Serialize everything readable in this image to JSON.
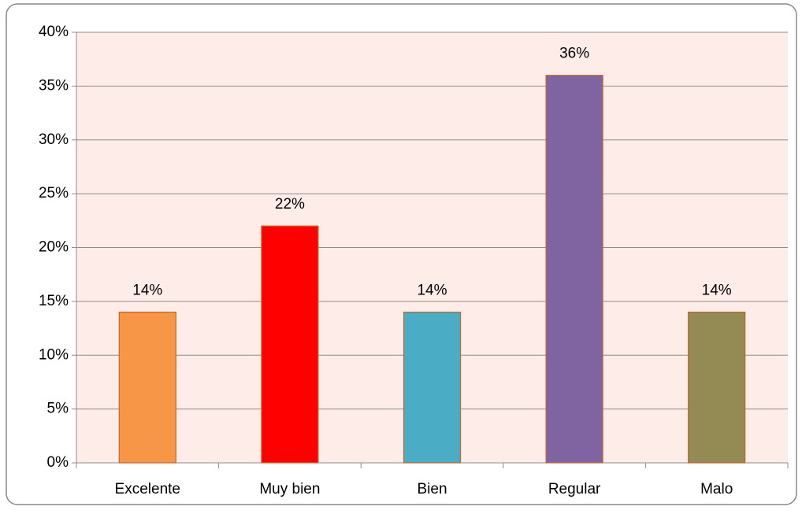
{
  "chart_data": {
    "type": "bar",
    "categories": [
      "Excelente",
      "Muy bien",
      "Bien",
      "Regular",
      "Malo"
    ],
    "values": [
      14,
      22,
      14,
      36,
      14
    ],
    "value_labels": [
      "14%",
      "22%",
      "14%",
      "36%",
      "14%"
    ],
    "colors": [
      "#f79646",
      "#ff0000",
      "#4bacc6",
      "#8064a2",
      "#948a54"
    ],
    "ylim": [
      0,
      40
    ],
    "yticks": [
      {
        "value": 0,
        "label": "0%"
      },
      {
        "value": 5,
        "label": "5%"
      },
      {
        "value": 10,
        "label": "10%"
      },
      {
        "value": 15,
        "label": "15%"
      },
      {
        "value": 20,
        "label": "20%"
      },
      {
        "value": 25,
        "label": "25%"
      },
      {
        "value": 30,
        "label": "30%"
      },
      {
        "value": 35,
        "label": "35%"
      },
      {
        "value": 40,
        "label": "40%"
      }
    ],
    "grid": true
  }
}
